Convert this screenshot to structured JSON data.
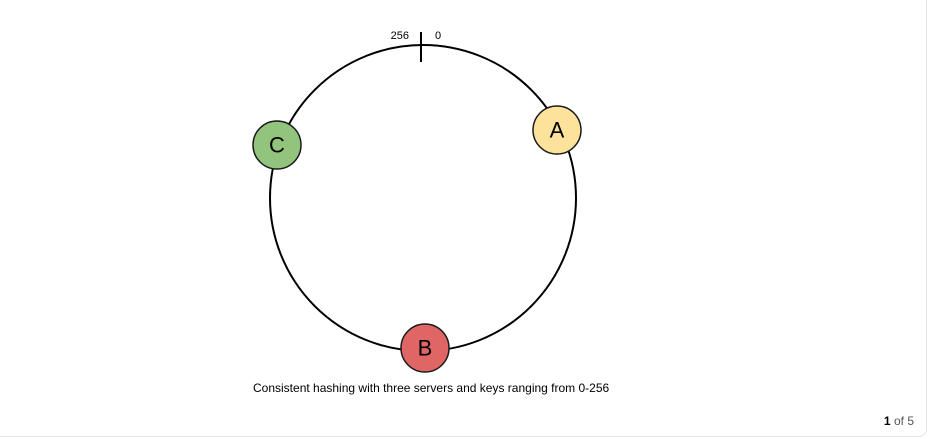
{
  "diagram": {
    "ring_labels": {
      "left": "256",
      "right": "0"
    },
    "servers": [
      {
        "id": "A",
        "label": "A",
        "color": "#FCE29B"
      },
      {
        "id": "B",
        "label": "B",
        "color": "#E06666"
      },
      {
        "id": "C",
        "label": "C",
        "color": "#93C47D"
      }
    ],
    "caption": "Consistent hashing with three servers and keys ranging from 0-256"
  },
  "pager": {
    "current": "1",
    "separator": "of",
    "total": "5"
  }
}
